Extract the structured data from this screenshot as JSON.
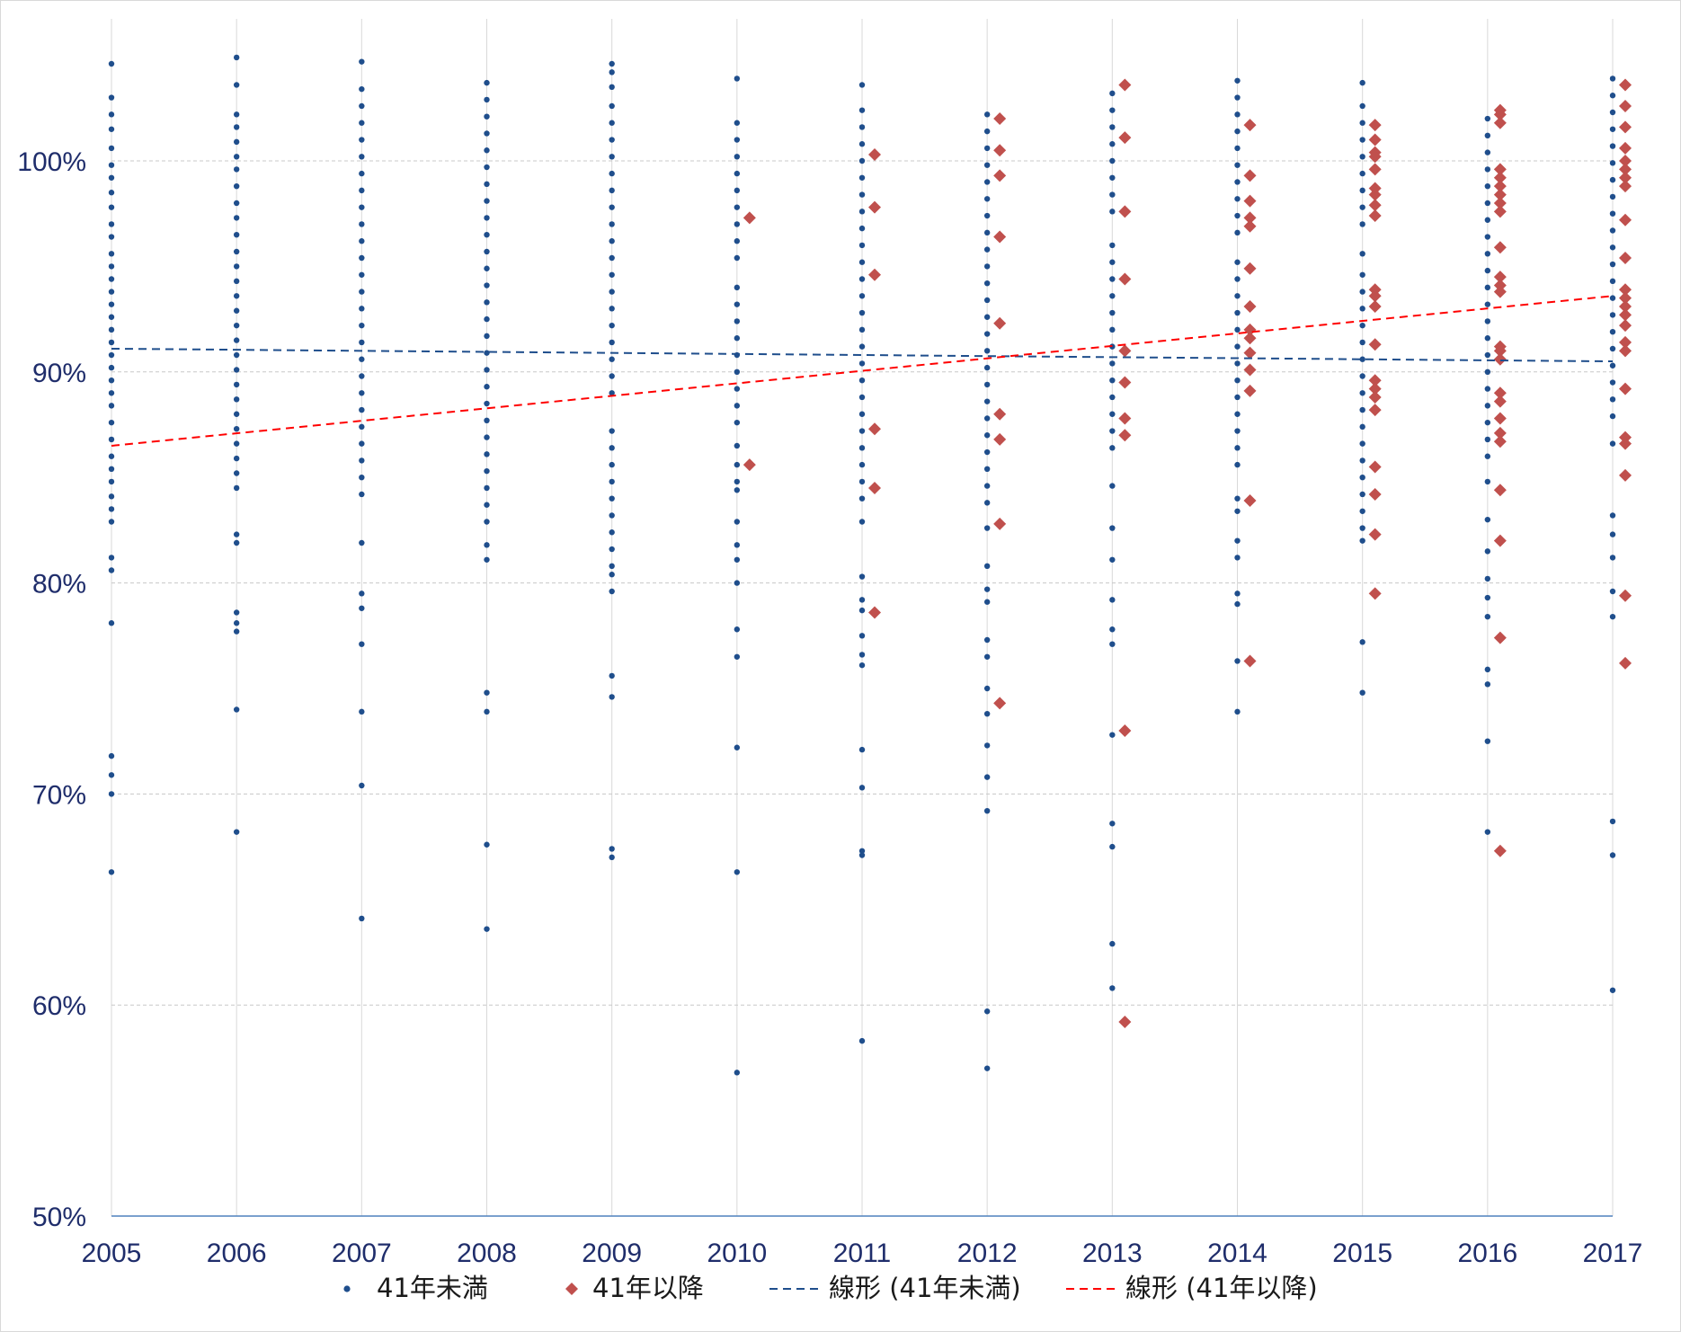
{
  "chart_data": {
    "type": "scatter",
    "title": "",
    "xlabel": "",
    "ylabel": "",
    "xlim": [
      2005,
      2017
    ],
    "ylim": [
      50,
      105
    ],
    "x_ticks": [
      "2005",
      "2006",
      "2007",
      "2008",
      "2009",
      "2010",
      "2011",
      "2012",
      "2013",
      "2014",
      "2015",
      "2016",
      "2017"
    ],
    "y_ticks": [
      {
        "value": 50,
        "label": "50%"
      },
      {
        "value": 60,
        "label": "60%"
      },
      {
        "value": 70,
        "label": "70%"
      },
      {
        "value": 80,
        "label": "80%"
      },
      {
        "value": 90,
        "label": "90%"
      },
      {
        "value": 100,
        "label": "100%"
      }
    ],
    "grid": true,
    "legend_position": "bottom",
    "series": [
      {
        "name": "41年未満",
        "marker": "circle",
        "color": "#1f4e8c",
        "points": [
          {
            "year": 2005,
            "values": [
              104.6,
              103.0,
              102.2,
              101.5,
              100.6,
              99.8,
              99.2,
              98.5,
              97.8,
              97.0,
              96.4,
              95.6,
              95.0,
              94.4,
              93.8,
              93.2,
              92.6,
              92.0,
              91.4,
              90.8,
              90.2,
              89.6,
              89.0,
              88.4,
              87.6,
              86.8,
              86.0,
              85.4,
              84.8,
              84.1,
              83.5,
              82.9,
              81.2,
              80.6,
              78.1,
              71.8,
              70.9,
              70.0,
              66.3
            ]
          },
          {
            "year": 2006,
            "values": [
              104.9,
              103.6,
              102.2,
              101.6,
              100.9,
              100.2,
              99.6,
              98.8,
              98.0,
              97.3,
              96.5,
              95.7,
              95.0,
              94.3,
              93.6,
              92.9,
              92.2,
              91.5,
              90.8,
              90.1,
              89.4,
              88.7,
              88.0,
              87.3,
              86.6,
              85.9,
              85.2,
              84.5,
              82.3,
              81.9,
              78.6,
              78.1,
              77.7,
              74.0,
              68.2
            ]
          },
          {
            "year": 2007,
            "values": [
              104.7,
              103.4,
              102.6,
              101.8,
              101.0,
              100.2,
              99.4,
              98.6,
              97.8,
              97.0,
              96.2,
              95.4,
              94.6,
              93.8,
              93.0,
              92.2,
              91.4,
              90.6,
              89.8,
              89.0,
              88.2,
              87.4,
              86.6,
              85.8,
              85.0,
              84.2,
              81.9,
              79.5,
              78.8,
              77.1,
              73.9,
              70.4,
              64.1
            ]
          },
          {
            "year": 2008,
            "values": [
              103.7,
              102.9,
              102.1,
              101.3,
              100.5,
              99.7,
              98.9,
              98.1,
              97.3,
              96.5,
              95.7,
              94.9,
              94.1,
              93.3,
              92.5,
              91.7,
              90.9,
              90.1,
              89.3,
              88.5,
              87.7,
              86.9,
              86.1,
              85.3,
              84.5,
              83.7,
              82.9,
              81.8,
              81.1,
              74.8,
              73.9,
              67.6,
              63.6
            ]
          },
          {
            "year": 2009,
            "values": [
              104.6,
              104.2,
              103.5,
              102.6,
              101.8,
              101.0,
              100.2,
              99.4,
              98.6,
              97.8,
              97.0,
              96.2,
              95.4,
              94.6,
              93.8,
              93.0,
              92.2,
              91.4,
              90.6,
              89.8,
              89.0,
              87.2,
              86.4,
              85.6,
              84.8,
              84.0,
              83.2,
              82.4,
              81.6,
              80.8,
              80.4,
              79.6,
              75.6,
              74.6,
              67.4,
              67.0
            ]
          },
          {
            "year": 2010,
            "values": [
              103.9,
              101.8,
              101.0,
              100.2,
              99.4,
              98.6,
              97.8,
              97.0,
              96.2,
              95.4,
              94.0,
              93.2,
              92.4,
              91.6,
              90.8,
              90.0,
              89.2,
              88.4,
              87.6,
              86.5,
              85.6,
              84.8,
              84.4,
              82.9,
              81.8,
              81.1,
              80.0,
              77.8,
              76.5,
              72.2,
              66.3,
              56.8
            ]
          },
          {
            "year": 2011,
            "values": [
              103.6,
              102.4,
              101.6,
              100.8,
              100.0,
              99.2,
              98.4,
              97.6,
              96.8,
              96.0,
              95.2,
              94.4,
              93.6,
              92.8,
              92.0,
              91.2,
              90.4,
              89.6,
              88.8,
              88.0,
              87.2,
              86.4,
              85.6,
              84.8,
              84.0,
              82.9,
              80.3,
              79.2,
              78.7,
              77.5,
              76.6,
              76.1,
              72.1,
              70.3,
              67.3,
              67.1,
              58.3
            ]
          },
          {
            "year": 2012,
            "values": [
              102.2,
              101.4,
              100.6,
              99.8,
              99.0,
              98.2,
              97.4,
              96.6,
              95.8,
              95.0,
              94.2,
              93.4,
              92.6,
              91.8,
              91.0,
              90.2,
              89.4,
              88.6,
              87.8,
              87.0,
              86.2,
              85.4,
              84.6,
              83.8,
              82.6,
              80.8,
              79.7,
              79.1,
              77.3,
              76.5,
              75.0,
              73.8,
              72.3,
              70.8,
              69.2,
              59.7,
              57.0
            ]
          },
          {
            "year": 2013,
            "values": [
              103.2,
              102.4,
              101.6,
              100.8,
              100.0,
              99.2,
              98.4,
              97.6,
              96.0,
              95.2,
              94.4,
              93.6,
              92.8,
              92.0,
              91.2,
              90.4,
              89.6,
              88.8,
              88.0,
              87.2,
              86.4,
              84.6,
              82.6,
              81.1,
              79.2,
              77.8,
              77.1,
              72.8,
              68.6,
              67.5,
              62.9,
              60.8
            ]
          },
          {
            "year": 2014,
            "values": [
              103.8,
              103.0,
              102.2,
              101.4,
              100.6,
              99.8,
              99.0,
              98.2,
              97.4,
              96.6,
              95.2,
              94.4,
              93.6,
              92.8,
              92.0,
              91.2,
              90.4,
              89.6,
              88.8,
              88.0,
              87.2,
              86.4,
              85.6,
              84.0,
              83.4,
              82.0,
              81.2,
              79.5,
              79.0,
              76.3,
              73.9
            ]
          },
          {
            "year": 2015,
            "values": [
              103.7,
              102.6,
              101.8,
              101.0,
              100.2,
              99.4,
              98.6,
              97.8,
              97.0,
              95.6,
              94.6,
              93.8,
              93.0,
              92.2,
              91.4,
              90.6,
              89.8,
              89.0,
              88.2,
              87.4,
              86.6,
              85.8,
              85.0,
              84.2,
              83.4,
              82.6,
              82.0,
              77.2,
              74.8
            ]
          },
          {
            "year": 2016,
            "values": [
              102.0,
              101.2,
              100.4,
              99.6,
              98.8,
              98.0,
              97.2,
              96.4,
              95.6,
              94.8,
              94.0,
              93.2,
              92.4,
              91.6,
              90.8,
              90.0,
              89.2,
              88.4,
              87.6,
              86.8,
              86.0,
              84.8,
              83.0,
              81.5,
              80.2,
              79.3,
              78.4,
              75.9,
              75.2,
              72.5,
              68.2
            ]
          },
          {
            "year": 2017,
            "values": [
              103.9,
              103.1,
              102.3,
              101.5,
              100.7,
              99.9,
              99.1,
              98.3,
              97.5,
              96.7,
              95.9,
              95.1,
              94.3,
              93.5,
              92.7,
              91.9,
              91.1,
              90.3,
              89.5,
              88.7,
              87.9,
              86.6,
              83.2,
              82.3,
              81.2,
              79.6,
              78.4,
              68.7,
              67.1,
              60.7
            ]
          }
        ]
      },
      {
        "name": "41年以降",
        "marker": "diamond",
        "color": "#c0504d",
        "points": [
          {
            "year": 2010,
            "values": [
              97.3,
              85.6
            ]
          },
          {
            "year": 2011,
            "values": [
              100.3,
              97.8,
              94.6,
              87.3,
              84.5,
              78.6
            ]
          },
          {
            "year": 2012,
            "values": [
              102.0,
              100.5,
              99.3,
              96.4,
              92.3,
              88.0,
              86.8,
              82.8,
              74.3
            ]
          },
          {
            "year": 2013,
            "values": [
              103.6,
              101.1,
              97.6,
              94.4,
              91.0,
              89.5,
              87.8,
              87.0,
              73.0,
              59.2
            ]
          },
          {
            "year": 2014,
            "values": [
              101.7,
              99.3,
              98.1,
              97.3,
              96.9,
              94.9,
              93.1,
              92.0,
              91.6,
              90.9,
              90.1,
              89.1,
              83.9,
              76.3
            ]
          },
          {
            "year": 2015,
            "values": [
              101.7,
              101.0,
              100.4,
              100.2,
              99.6,
              98.7,
              98.4,
              97.9,
              97.4,
              93.9,
              93.6,
              93.1,
              91.3,
              89.6,
              89.2,
              88.8,
              88.2,
              85.5,
              84.2,
              82.3,
              79.5
            ]
          },
          {
            "year": 2016,
            "values": [
              102.4,
              102.2,
              101.8,
              99.6,
              99.2,
              98.8,
              98.4,
              98.0,
              97.6,
              95.9,
              94.5,
              94.1,
              93.8,
              91.2,
              91.0,
              90.6,
              89.0,
              88.6,
              87.8,
              87.1,
              86.7,
              84.4,
              82.0,
              77.4,
              67.3
            ]
          },
          {
            "year": 2017,
            "values": [
              103.6,
              102.6,
              101.6,
              100.6,
              100.0,
              99.6,
              99.2,
              98.8,
              97.2,
              95.4,
              93.9,
              93.5,
              93.1,
              92.7,
              92.2,
              91.4,
              91.0,
              89.2,
              86.9,
              86.6,
              85.1,
              79.4,
              76.2
            ]
          }
        ]
      },
      {
        "name": "線形 (41年未満)",
        "type": "trendline",
        "style": "dashed",
        "color": "#1f4e8c",
        "x": [
          2005,
          2017
        ],
        "y": [
          91.1,
          90.5
        ]
      },
      {
        "name": "線形 (41年以降)",
        "type": "trendline",
        "style": "dashed",
        "color": "#ff0000",
        "x": [
          2005,
          2017
        ],
        "y": [
          86.5,
          93.6
        ]
      }
    ]
  }
}
